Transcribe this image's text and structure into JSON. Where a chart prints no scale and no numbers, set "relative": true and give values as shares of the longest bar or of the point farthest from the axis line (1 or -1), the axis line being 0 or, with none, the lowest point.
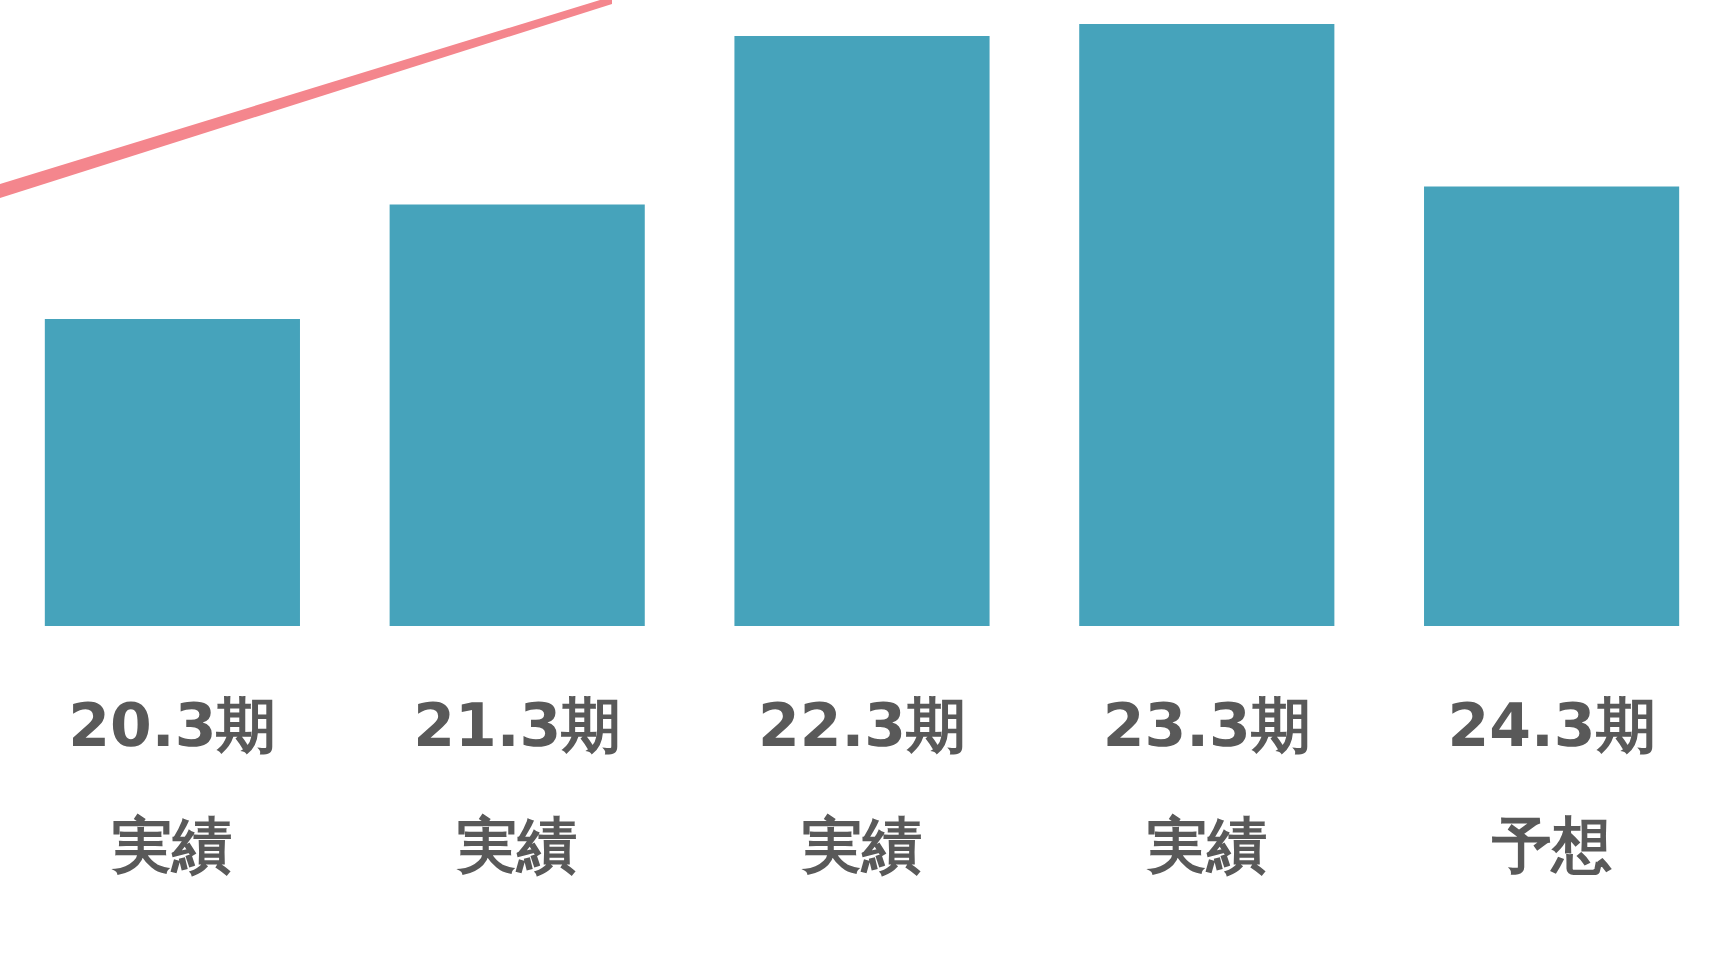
{
  "chart_data": {
    "type": "bar",
    "relative": true,
    "categories": [
      "20.3期実績",
      "21.3期実績",
      "22.3期実績",
      "23.3期実績",
      "24.3期予想"
    ],
    "values": [
      0.51,
      0.7,
      0.98,
      1,
      0.73
    ],
    "color": "#46a3bb",
    "legend": false,
    "grid": false
  }
}
